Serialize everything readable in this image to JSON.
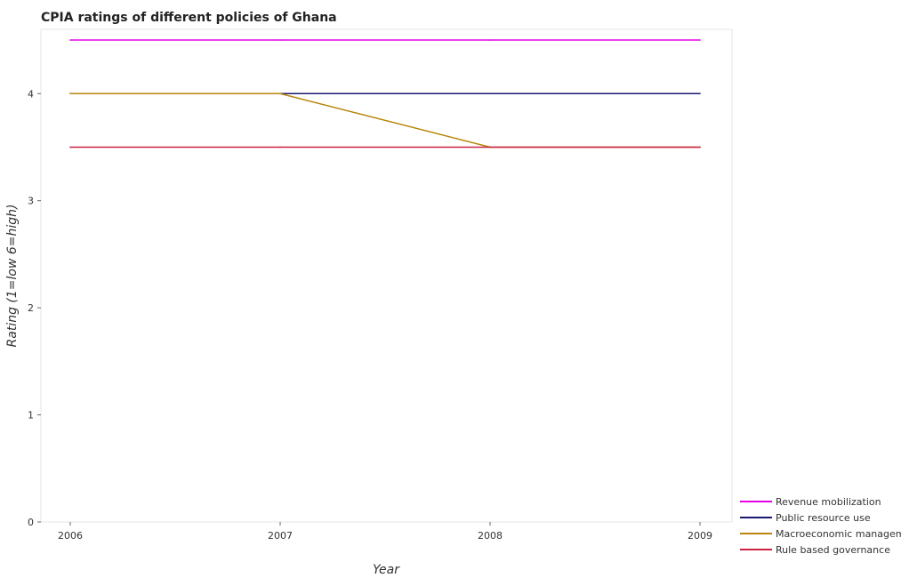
{
  "chart_data": {
    "type": "line",
    "title": "CPIA ratings of different policies of Ghana",
    "xlabel": "Year",
    "ylabel": "Rating (1=low 6=high)",
    "categories": [
      "2006",
      "2007",
      "2008",
      "2009"
    ],
    "ylim": [
      0,
      4.6
    ],
    "yticks": [
      0,
      1,
      2,
      3,
      4
    ],
    "grid": false,
    "legend_position": "bottom-right",
    "series": [
      {
        "name": "Revenue mobilization",
        "color": "#e600e6",
        "values": [
          4.5,
          4.5,
          4.5,
          4.5
        ]
      },
      {
        "name": "Public resource use",
        "color": "#191970",
        "values": [
          4.0,
          4.0,
          4.0,
          4.0
        ]
      },
      {
        "name": "Macroeconomic management",
        "color": "#b8860b",
        "values": [
          4.0,
          4.0,
          3.5,
          3.5
        ]
      },
      {
        "name": "Rule based governance",
        "color": "#cc2244",
        "values": [
          3.5,
          3.5,
          3.5,
          3.5
        ]
      }
    ]
  }
}
